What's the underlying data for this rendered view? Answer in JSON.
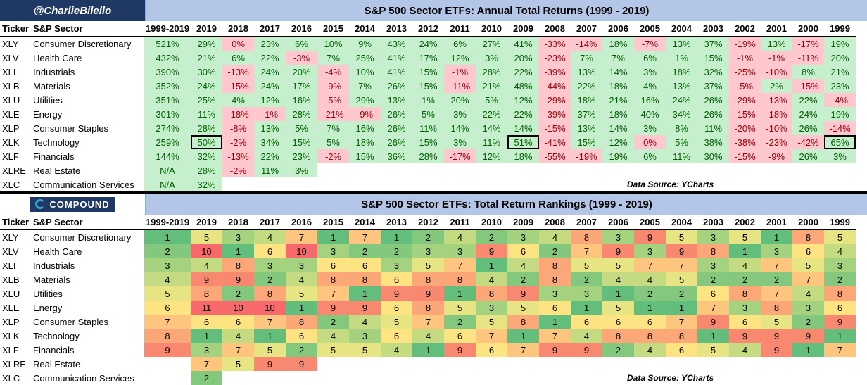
{
  "top": {
    "brand": "@CharlieBilello",
    "title": "S&P 500 Sector ETFs: Annual Total Returns (1999 - 2019)",
    "source": "Data Source: YCharts"
  },
  "bottom": {
    "logo_text": "COMPOUND",
    "title": "S&P 500 Sector ETFs: Total Return Rankings (1999 - 2019)",
    "source": "Data Source: YCharts"
  },
  "headers": {
    "ticker": "Ticker",
    "sector": "S&P Sector",
    "years": [
      "1999-2019",
      "2019",
      "2018",
      "2017",
      "2016",
      "2015",
      "2014",
      "2013",
      "2012",
      "2011",
      "2010",
      "2009",
      "2008",
      "2007",
      "2006",
      "2005",
      "2004",
      "2003",
      "2002",
      "2001",
      "2000",
      "1999"
    ]
  },
  "returns": [
    {
      "ticker": "XLY",
      "sector": "Consumer Discretionary",
      "values": [
        "521%",
        "29%",
        "0%",
        "23%",
        "6%",
        "10%",
        "9%",
        "43%",
        "24%",
        "6%",
        "27%",
        "41%",
        "-33%",
        "-14%",
        "18%",
        "-7%",
        "13%",
        "37%",
        "-19%",
        "13%",
        "-17%",
        "19%"
      ]
    },
    {
      "ticker": "XLV",
      "sector": "Health Care",
      "values": [
        "432%",
        "21%",
        "6%",
        "22%",
        "-3%",
        "7%",
        "25%",
        "41%",
        "17%",
        "12%",
        "3%",
        "20%",
        "-23%",
        "7%",
        "7%",
        "6%",
        "1%",
        "15%",
        "-1%",
        "-1%",
        "-11%",
        "20%"
      ]
    },
    {
      "ticker": "XLI",
      "sector": "Industrials",
      "values": [
        "390%",
        "30%",
        "-13%",
        "24%",
        "20%",
        "-4%",
        "10%",
        "41%",
        "15%",
        "-1%",
        "28%",
        "22%",
        "-39%",
        "13%",
        "14%",
        "3%",
        "18%",
        "32%",
        "-25%",
        "-10%",
        "8%",
        "21%"
      ]
    },
    {
      "ticker": "XLB",
      "sector": "Materials",
      "values": [
        "352%",
        "24%",
        "-15%",
        "24%",
        "17%",
        "-9%",
        "7%",
        "26%",
        "15%",
        "-11%",
        "21%",
        "48%",
        "-44%",
        "22%",
        "18%",
        "4%",
        "13%",
        "37%",
        "-5%",
        "2%",
        "-15%",
        "23%"
      ]
    },
    {
      "ticker": "XLU",
      "sector": "Utilities",
      "values": [
        "351%",
        "25%",
        "4%",
        "12%",
        "16%",
        "-5%",
        "29%",
        "13%",
        "1%",
        "20%",
        "5%",
        "12%",
        "-29%",
        "18%",
        "21%",
        "16%",
        "24%",
        "26%",
        "-29%",
        "-13%",
        "22%",
        "-4%"
      ]
    },
    {
      "ticker": "XLE",
      "sector": "Energy",
      "values": [
        "301%",
        "11%",
        "-18%",
        "-1%",
        "28%",
        "-21%",
        "-9%",
        "26%",
        "5%",
        "3%",
        "22%",
        "22%",
        "-39%",
        "37%",
        "18%",
        "40%",
        "34%",
        "26%",
        "-15%",
        "-18%",
        "24%",
        "19%"
      ]
    },
    {
      "ticker": "XLP",
      "sector": "Consumer Staples",
      "values": [
        "274%",
        "28%",
        "-8%",
        "13%",
        "5%",
        "7%",
        "16%",
        "26%",
        "11%",
        "14%",
        "14%",
        "14%",
        "-15%",
        "13%",
        "14%",
        "3%",
        "8%",
        "11%",
        "-20%",
        "-10%",
        "26%",
        "-14%"
      ]
    },
    {
      "ticker": "XLK",
      "sector": "Technology",
      "values": [
        "259%",
        "50%",
        "-2%",
        "34%",
        "15%",
        "5%",
        "18%",
        "26%",
        "15%",
        "3%",
        "11%",
        "51%",
        "-41%",
        "15%",
        "12%",
        "0%",
        "5%",
        "38%",
        "-38%",
        "-23%",
        "-42%",
        "65%"
      ]
    },
    {
      "ticker": "XLF",
      "sector": "Financials",
      "values": [
        "144%",
        "32%",
        "-13%",
        "22%",
        "23%",
        "-2%",
        "15%",
        "36%",
        "28%",
        "-17%",
        "12%",
        "18%",
        "-55%",
        "-19%",
        "19%",
        "6%",
        "11%",
        "30%",
        "-15%",
        "-9%",
        "26%",
        "3%"
      ]
    },
    {
      "ticker": "XLRE",
      "sector": "Real Estate",
      "values": [
        "N/A",
        "28%",
        "-2%",
        "11%",
        "3%",
        "",
        "",
        "",
        "",
        "",
        "",
        "",
        "",
        "",
        "",
        "",
        "",
        "",
        "",
        "",
        "",
        ""
      ]
    },
    {
      "ticker": "XLC",
      "sector": "Communication Services",
      "values": [
        "N/A",
        "32%",
        "",
        "",
        "",
        "",
        "",
        "",
        "",
        "",
        "",
        "",
        "",
        "",
        "",
        "",
        "",
        "",
        "",
        "",
        "",
        ""
      ]
    }
  ],
  "rankings": [
    {
      "ticker": "XLY",
      "sector": "Consumer Discretionary",
      "values": [
        "1",
        "5",
        "3",
        "4",
        "7",
        "1",
        "7",
        "1",
        "2",
        "4",
        "2",
        "3",
        "4",
        "8",
        "3",
        "9",
        "5",
        "3",
        "5",
        "1",
        "8",
        "5"
      ]
    },
    {
      "ticker": "XLV",
      "sector": "Health Care",
      "values": [
        "2",
        "10",
        "1",
        "6",
        "10",
        "3",
        "2",
        "2",
        "3",
        "3",
        "9",
        "6",
        "2",
        "7",
        "9",
        "3",
        "9",
        "8",
        "1",
        "3",
        "6",
        "4"
      ]
    },
    {
      "ticker": "XLI",
      "sector": "Industrials",
      "values": [
        "3",
        "4",
        "8",
        "3",
        "3",
        "6",
        "6",
        "3",
        "5",
        "7",
        "1",
        "4",
        "8",
        "5",
        "5",
        "7",
        "7",
        "3",
        "4",
        "7",
        "5",
        "3"
      ]
    },
    {
      "ticker": "XLB",
      "sector": "Materials",
      "values": [
        "4",
        "9",
        "9",
        "2",
        "4",
        "8",
        "8",
        "6",
        "8",
        "8",
        "4",
        "2",
        "8",
        "2",
        "4",
        "4",
        "5",
        "2",
        "2",
        "2",
        "7",
        "2"
      ]
    },
    {
      "ticker": "XLU",
      "sector": "Utilities",
      "values": [
        "5",
        "8",
        "2",
        "8",
        "5",
        "7",
        "1",
        "9",
        "9",
        "1",
        "8",
        "9",
        "3",
        "3",
        "1",
        "2",
        "2",
        "6",
        "8",
        "7",
        "4",
        "8"
      ]
    },
    {
      "ticker": "XLE",
      "sector": "Energy",
      "values": [
        "6",
        "11",
        "10",
        "10",
        "1",
        "9",
        "9",
        "6",
        "8",
        "5",
        "3",
        "5",
        "6",
        "1",
        "5",
        "1",
        "1",
        "7",
        "3",
        "8",
        "3",
        "6"
      ]
    },
    {
      "ticker": "XLP",
      "sector": "Consumer Staples",
      "values": [
        "7",
        "6",
        "6",
        "7",
        "8",
        "2",
        "4",
        "5",
        "7",
        "2",
        "5",
        "8",
        "1",
        "6",
        "6",
        "6",
        "7",
        "9",
        "6",
        "5",
        "2",
        "9"
      ]
    },
    {
      "ticker": "XLK",
      "sector": "Technology",
      "values": [
        "8",
        "1",
        "4",
        "1",
        "6",
        "4",
        "3",
        "6",
        "4",
        "6",
        "7",
        "1",
        "7",
        "4",
        "8",
        "8",
        "8",
        "1",
        "9",
        "9",
        "9",
        "1"
      ]
    },
    {
      "ticker": "XLF",
      "sector": "Financials",
      "values": [
        "9",
        "3",
        "7",
        "5",
        "2",
        "5",
        "5",
        "4",
        "1",
        "9",
        "6",
        "7",
        "9",
        "9",
        "2",
        "4",
        "6",
        "5",
        "4",
        "9",
        "1",
        "7"
      ]
    },
    {
      "ticker": "XLRE",
      "sector": "Real Estate",
      "values": [
        "",
        "7",
        "5",
        "9",
        "9",
        "",
        "",
        "",
        "",
        "",
        "",
        "",
        "",
        "",
        "",
        "",
        "",
        "",
        "",
        "",
        "",
        ""
      ]
    },
    {
      "ticker": "XLC",
      "sector": "Communication Services",
      "values": [
        "",
        "2",
        "",
        "",
        "",
        "",
        "",
        "",
        "",
        "",
        "",
        "",
        "",
        "",
        "",
        "",
        "",
        "",
        "",
        "",
        "",
        ""
      ]
    }
  ],
  "boxed_cells": [
    [
      "XLK",
      "2019"
    ],
    [
      "XLK",
      "2009"
    ],
    [
      "XLK",
      "1999"
    ]
  ],
  "colors": {
    "positive_bg": "#c6efce",
    "negative_bg": "#ffc7ce",
    "rank_scale": [
      "#63be7b",
      "#84c87d",
      "#a5d27f",
      "#c5db81",
      "#e6e483",
      "#fee382",
      "#fdc57d",
      "#fba777",
      "#f98870",
      "#f8696b",
      "#f8696b"
    ]
  }
}
